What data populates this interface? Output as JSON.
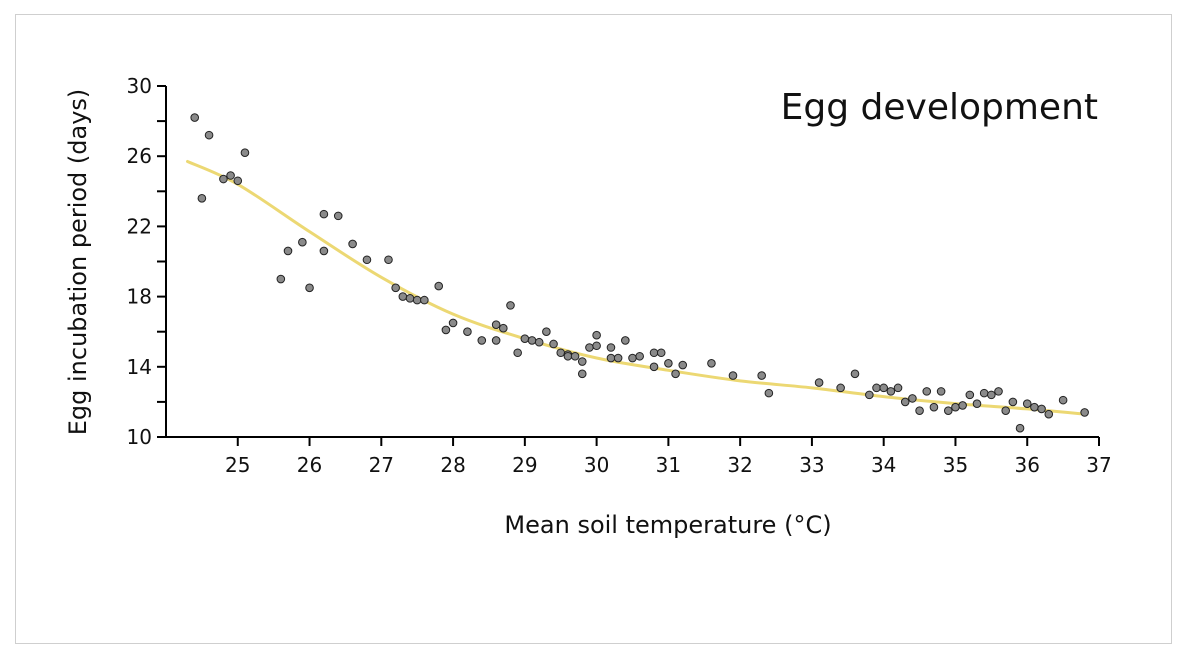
{
  "chart_data": {
    "type": "scatter",
    "title": "Egg development",
    "xlabel": "Mean soil temperature (°C)",
    "ylabel": "Egg incubation period (days)",
    "xlim": [
      24,
      37
    ],
    "ylim": [
      10,
      30
    ],
    "xticks": [
      25,
      26,
      27,
      28,
      29,
      30,
      31,
      32,
      33,
      34,
      35,
      36,
      37
    ],
    "yticks_labeled": [
      10,
      14,
      18,
      22,
      26,
      30
    ],
    "yticks_minor": [
      12,
      16,
      20,
      24,
      28
    ],
    "grid": false,
    "legend": "none",
    "colors": {
      "points": "#8a8a8a",
      "point_stroke": "#222222",
      "curve": "#ecd873",
      "axis": "#000000"
    },
    "series": [
      {
        "kind": "points",
        "x": [
          24.4,
          24.5,
          24.6,
          24.8,
          24.9,
          25.0,
          25.1,
          25.6,
          25.7,
          25.9,
          26.0,
          26.2,
          26.2,
          26.4,
          26.6,
          26.8,
          27.1,
          27.2,
          27.3,
          27.4,
          27.5,
          27.6,
          27.8,
          27.9,
          28.0,
          28.2,
          28.4,
          28.6,
          28.6,
          28.7,
          28.8,
          28.9,
          29.0,
          29.1,
          29.2,
          29.3,
          29.4,
          29.5,
          29.6,
          29.6,
          29.7,
          29.8,
          29.8,
          29.9,
          30.0,
          30.0,
          30.2,
          30.2,
          30.3,
          30.4,
          30.5,
          30.6,
          30.8,
          30.8,
          30.9,
          31.0,
          31.1,
          31.2,
          31.6,
          31.9,
          32.3,
          32.4,
          33.1,
          33.4,
          33.6,
          33.8,
          33.9,
          34.0,
          34.1,
          34.2,
          34.3,
          34.4,
          34.5,
          34.6,
          34.7,
          34.8,
          34.9,
          35.0,
          35.1,
          35.2,
          35.3,
          35.4,
          35.5,
          35.6,
          35.7,
          35.8,
          35.9,
          36.0,
          36.1,
          36.2,
          36.3,
          36.5,
          36.8
        ],
        "y": [
          28.2,
          23.6,
          27.2,
          24.7,
          24.9,
          24.6,
          26.2,
          19.0,
          20.6,
          21.1,
          18.5,
          20.6,
          22.7,
          22.6,
          21.0,
          20.1,
          20.1,
          18.5,
          18.0,
          17.9,
          17.8,
          17.8,
          18.6,
          16.1,
          16.5,
          16.0,
          15.5,
          15.5,
          16.4,
          16.2,
          17.5,
          14.8,
          15.6,
          15.5,
          15.4,
          16.0,
          15.3,
          14.8,
          14.7,
          14.6,
          14.6,
          14.3,
          13.6,
          15.1,
          15.2,
          15.8,
          15.1,
          14.5,
          14.5,
          15.5,
          14.5,
          14.6,
          14.0,
          14.8,
          14.8,
          14.2,
          13.6,
          14.1,
          14.2,
          13.5,
          13.5,
          12.5,
          13.1,
          12.8,
          13.6,
          12.4,
          12.8,
          12.8,
          12.6,
          12.8,
          12.0,
          12.2,
          11.5,
          12.6,
          11.7,
          12.6,
          11.5,
          11.7,
          11.8,
          12.4,
          11.9,
          12.5,
          12.4,
          12.6,
          11.5,
          12.0,
          10.5,
          11.9,
          11.7,
          11.6,
          11.3,
          12.1,
          11.4
        ]
      },
      {
        "kind": "fit_curve",
        "x": [
          24.3,
          25.0,
          26.0,
          27.0,
          28.0,
          29.0,
          30.0,
          31.0,
          32.0,
          33.0,
          34.0,
          35.0,
          36.0,
          36.8
        ],
        "y": [
          25.7,
          24.4,
          21.7,
          19.1,
          17.0,
          15.6,
          14.5,
          13.8,
          13.2,
          12.8,
          12.3,
          11.9,
          11.6,
          11.3
        ]
      }
    ]
  }
}
